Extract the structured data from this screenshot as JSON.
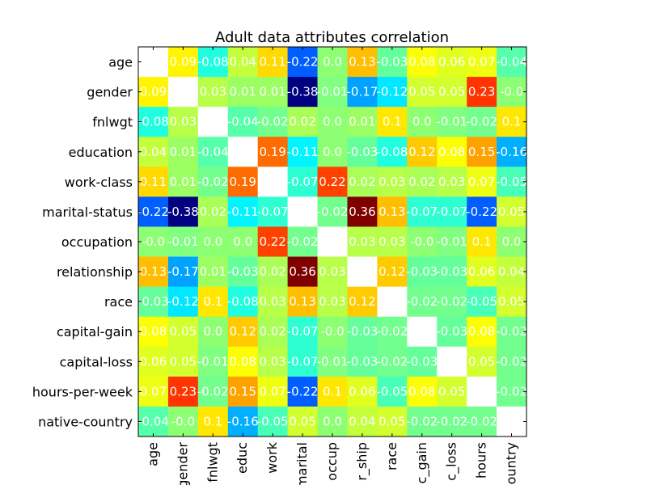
{
  "chart_data": {
    "type": "heatmap",
    "title": "Adult data attributes correlation",
    "xlabel": "",
    "ylabel": "",
    "colormap": "jet",
    "nan_color": "#ffffff",
    "grid": false,
    "row_labels": [
      "age",
      "gender",
      "fnlwgt",
      "education",
      "work-class",
      "marital-status",
      "occupation",
      "relationship",
      "race",
      "capital-gain",
      "capital-loss",
      "hours-per-week",
      "native-country"
    ],
    "col_labels": [
      "age",
      "gender",
      "fnlwgt",
      "educ",
      "work",
      "marital",
      "occup",
      "r_ship",
      "race",
      "c_gain",
      "c_loss",
      "hours",
      "country"
    ],
    "values": [
      [
        null,
        0.09,
        -0.08,
        0.04,
        0.11,
        -0.22,
        0.0,
        0.13,
        -0.03,
        0.08,
        0.06,
        0.07,
        -0.04
      ],
      [
        0.09,
        null,
        0.03,
        0.01,
        0.01,
        -0.38,
        -0.01,
        -0.17,
        -0.12,
        0.05,
        0.05,
        0.23,
        -0.0
      ],
      [
        -0.08,
        0.03,
        null,
        -0.04,
        -0.02,
        0.02,
        0.0,
        0.01,
        0.1,
        0.0,
        -0.01,
        -0.02,
        0.1
      ],
      [
        0.04,
        0.01,
        -0.04,
        null,
        0.19,
        -0.11,
        0.0,
        -0.03,
        -0.08,
        0.12,
        0.08,
        0.15,
        -0.16
      ],
      [
        0.11,
        0.01,
        -0.02,
        0.19,
        null,
        -0.07,
        0.22,
        0.02,
        0.03,
        0.02,
        0.03,
        0.07,
        -0.05
      ],
      [
        -0.22,
        -0.38,
        0.02,
        -0.11,
        -0.07,
        null,
        -0.02,
        0.36,
        0.13,
        -0.07,
        -0.07,
        -0.22,
        0.05
      ],
      [
        -0.0,
        -0.01,
        0.0,
        0.0,
        0.22,
        -0.02,
        null,
        0.03,
        0.03,
        -0.0,
        -0.01,
        0.1,
        0.0
      ],
      [
        0.13,
        -0.17,
        0.01,
        -0.03,
        0.02,
        0.36,
        0.03,
        null,
        0.12,
        -0.03,
        -0.03,
        0.06,
        0.04
      ],
      [
        -0.03,
        -0.12,
        0.1,
        -0.08,
        0.03,
        0.13,
        0.03,
        0.12,
        null,
        -0.02,
        -0.02,
        -0.05,
        0.05
      ],
      [
        0.08,
        0.05,
        0.0,
        0.12,
        0.02,
        -0.07,
        -0.0,
        -0.03,
        -0.02,
        null,
        -0.03,
        0.08,
        -0.02
      ],
      [
        0.06,
        0.05,
        -0.01,
        0.08,
        0.03,
        -0.07,
        -0.01,
        -0.03,
        -0.02,
        -0.03,
        null,
        0.05,
        -0.02
      ],
      [
        0.07,
        0.23,
        -0.02,
        0.15,
        0.07,
        -0.22,
        0.1,
        0.06,
        -0.05,
        0.08,
        0.05,
        null,
        -0.02
      ],
      [
        -0.04,
        -0.0,
        0.1,
        -0.16,
        -0.05,
        0.05,
        0.0,
        0.04,
        0.05,
        -0.02,
        -0.02,
        -0.02,
        null
      ]
    ],
    "display_labels": [
      [
        "nan",
        "0.09",
        "-0.08",
        "0.04",
        "0.11",
        "-0.22",
        "0.0",
        "0.13",
        "-0.03",
        "0.08",
        "0.06",
        "0.07",
        "-0.04"
      ],
      [
        "0.09",
        "nan",
        "0.03",
        "0.01",
        "0.01",
        "-0.38",
        "-0.01",
        "-0.17",
        "-0.12",
        "0.05",
        "0.05",
        "0.23",
        "-0.0"
      ],
      [
        "-0.08",
        "0.03",
        "nan",
        "-0.04",
        "-0.02",
        "0.02",
        "0.0",
        "0.01",
        "0.1",
        "0.0",
        "-0.01",
        "-0.02",
        "0.1"
      ],
      [
        "0.04",
        "0.01",
        "-0.04",
        "nan",
        "0.19",
        "-0.11",
        "0.0",
        "-0.03",
        "-0.08",
        "0.12",
        "0.08",
        "0.15",
        "-0.16"
      ],
      [
        "0.11",
        "0.01",
        "-0.02",
        "0.19",
        "nan",
        "-0.07",
        "0.22",
        "0.02",
        "0.03",
        "0.02",
        "0.03",
        "0.07",
        "-0.05"
      ],
      [
        "-0.22",
        "-0.38",
        "0.02",
        "-0.11",
        "-0.07",
        "nan",
        "-0.02",
        "0.36",
        "0.13",
        "-0.07",
        "-0.07",
        "-0.22",
        "0.05"
      ],
      [
        "-0.0",
        "-0.01",
        "0.0",
        "0.0",
        "0.22",
        "-0.02",
        "nan",
        "0.03",
        "0.03",
        "-0.0",
        "-0.01",
        "0.1",
        "0.0"
      ],
      [
        "0.13",
        "-0.17",
        "0.01",
        "-0.03",
        "0.02",
        "0.36",
        "0.03",
        "nan",
        "0.12",
        "-0.03",
        "-0.03",
        "0.06",
        "0.04"
      ],
      [
        "-0.03",
        "-0.12",
        "0.1",
        "-0.08",
        "0.03",
        "0.13",
        "0.03",
        "0.12",
        "nan",
        "-0.02",
        "-0.02",
        "-0.05",
        "0.05"
      ],
      [
        "0.08",
        "0.05",
        "0.0",
        "0.12",
        "0.02",
        "-0.07",
        "-0.0",
        "-0.03",
        "-0.02",
        "nan",
        "-0.03",
        "0.08",
        "-0.02"
      ],
      [
        "0.06",
        "0.05",
        "-0.01",
        "0.08",
        "0.03",
        "-0.07",
        "-0.01",
        "-0.03",
        "-0.02",
        "-0.03",
        "nan",
        "0.05",
        "-0.02"
      ],
      [
        "0.07",
        "0.23",
        "-0.02",
        "0.15",
        "0.07",
        "-0.22",
        "0.1",
        "0.06",
        "-0.05",
        "0.08",
        "0.05",
        "nan",
        "-0.02"
      ],
      [
        "-0.04",
        "-0.0",
        "0.1",
        "-0.16",
        "-0.05",
        "0.05",
        "0.0",
        "0.04",
        "0.05",
        "-0.02",
        "-0.02",
        "-0.02",
        "nan"
      ]
    ]
  }
}
